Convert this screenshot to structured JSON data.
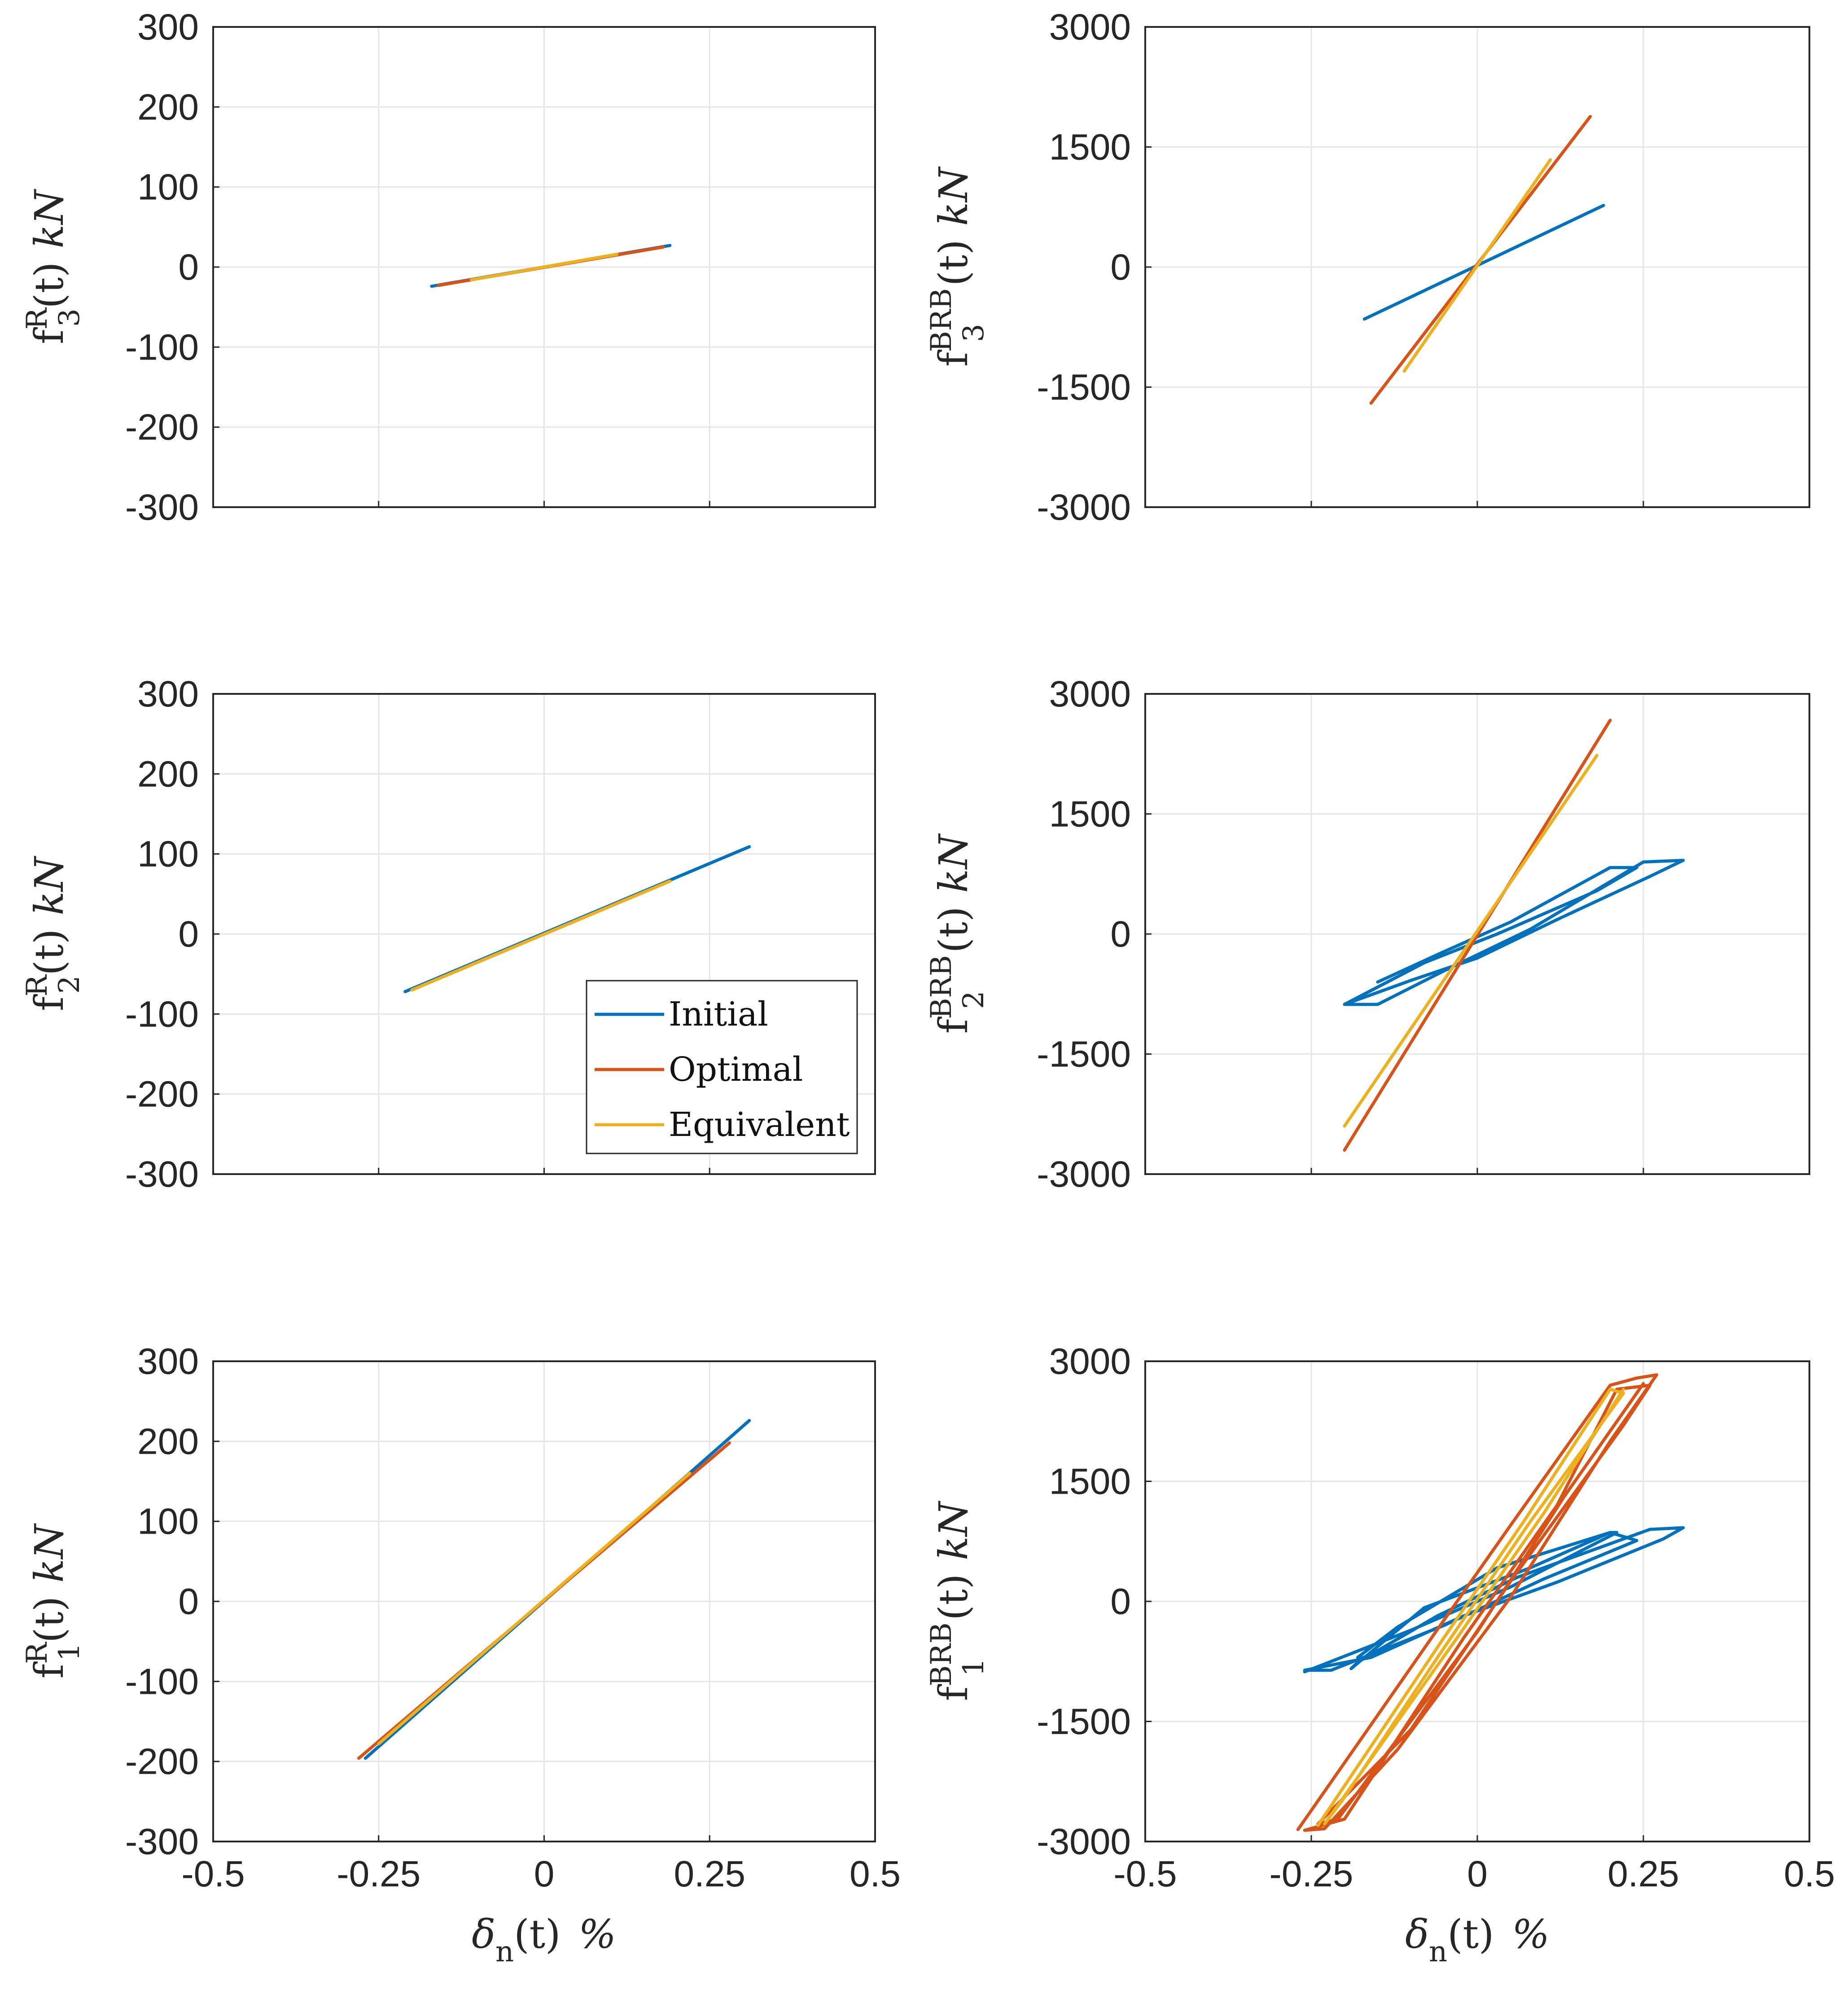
{
  "colors": {
    "Initial": "#0072BD",
    "Optimal": "#D95319",
    "Equivalent": "#EDB120",
    "grid": "#e6e6e6",
    "axis": "#262626"
  },
  "legend": [
    "Initial",
    "Optimal",
    "Equivalent"
  ],
  "labels": {
    "x_main": "δ",
    "x_sub": "n",
    "x_rest": "(t)",
    "x_unit": "%",
    "yR_main": "f",
    "yR_sup": "R",
    "yBRB_sup": "BRB",
    "y_rest": "(t)",
    "y_unit": "kN"
  },
  "chart_data": [
    {
      "type": "line",
      "id": "fR3",
      "title": "",
      "story": "3",
      "ylabel": "f3R(t) kN",
      "xlabel": "",
      "xlim": [
        -0.5,
        0.5
      ],
      "ylim": [
        -300,
        300
      ],
      "xticks": [
        "-0.5",
        "-0.25",
        "0",
        "0.25",
        "0.5"
      ],
      "yticks": [
        "300",
        "200",
        "100",
        "0",
        "-100",
        "-200",
        "-300"
      ],
      "series": [
        {
          "name": "Initial",
          "x": [
            -0.17,
            0.19
          ],
          "y": [
            -24,
            27
          ]
        },
        {
          "name": "Optimal",
          "x": [
            -0.16,
            0.18
          ],
          "y": [
            -23,
            25
          ]
        },
        {
          "name": "Equivalent",
          "x": [
            -0.11,
            0.11
          ],
          "y": [
            -16,
            16
          ]
        }
      ]
    },
    {
      "type": "line",
      "id": "fBRB3",
      "title": "",
      "story": "3",
      "ylabel": "f3BRB(t) kN",
      "xlabel": "",
      "xlim": [
        -0.5,
        0.5
      ],
      "ylim": [
        -3000,
        3000
      ],
      "xticks": [
        "-0.5",
        "-0.25",
        "0",
        "0.25",
        "0.5"
      ],
      "yticks": [
        "3000",
        "1500",
        "0",
        "-1500",
        "-3000"
      ],
      "series": [
        {
          "name": "Initial",
          "x": [
            -0.17,
            0.19
          ],
          "y": [
            -650,
            770
          ]
        },
        {
          "name": "Optimal",
          "x": [
            -0.16,
            0.17
          ],
          "y": [
            -1700,
            1880
          ]
        },
        {
          "name": "Equivalent",
          "x": [
            -0.11,
            0.11
          ],
          "y": [
            -1300,
            1340
          ]
        }
      ]
    },
    {
      "type": "line",
      "id": "fR2",
      "title": "",
      "story": "2",
      "ylabel": "f2R(t) kN",
      "xlabel": "",
      "xlim": [
        -0.5,
        0.5
      ],
      "ylim": [
        -300,
        300
      ],
      "xticks": [
        "-0.5",
        "-0.25",
        "0",
        "0.25",
        "0.5"
      ],
      "yticks": [
        "300",
        "200",
        "100",
        "0",
        "-100",
        "-200",
        "-300"
      ],
      "series": [
        {
          "name": "Initial",
          "x": [
            -0.21,
            0.31
          ],
          "y": [
            -72,
            109
          ]
        },
        {
          "name": "Optimal",
          "x": [
            -0.2,
            0.19
          ],
          "y": [
            -70,
            66
          ]
        },
        {
          "name": "Equivalent",
          "x": [
            -0.2,
            0.19
          ],
          "y": [
            -70,
            66
          ]
        }
      ]
    },
    {
      "type": "line",
      "id": "fBRB2",
      "title": "",
      "story": "2",
      "ylabel": "f2BRB(t) kN",
      "xlabel": "",
      "xlim": [
        -0.5,
        0.5
      ],
      "ylim": [
        -3000,
        3000
      ],
      "xticks": [
        "-0.5",
        "-0.25",
        "0",
        "0.25",
        "0.5"
      ],
      "yticks": [
        "3000",
        "1500",
        "0",
        "-1500",
        "-3000"
      ],
      "series": [
        {
          "name": "Initial",
          "x": [
            -0.15,
            -0.05,
            0.05,
            0.2,
            0.24,
            0.18,
            0.03,
            -0.08,
            -0.2,
            -0.15,
            -0.05,
            0.08,
            0.25,
            0.31,
            0.26,
            0.12,
            0.0,
            -0.1,
            -0.2
          ],
          "y": [
            -600,
            -220,
            150,
            830,
            830,
            540,
            0,
            -360,
            -880,
            -880,
            -460,
            60,
            900,
            920,
            720,
            180,
            -300,
            -580,
            -880
          ]
        },
        {
          "name": "Optimal",
          "x": [
            -0.2,
            0.2
          ],
          "y": [
            -2700,
            2670
          ]
        },
        {
          "name": "Equivalent",
          "x": [
            -0.2,
            0.18
          ],
          "y": [
            -2400,
            2230
          ]
        }
      ]
    },
    {
      "type": "line",
      "id": "fR1",
      "title": "",
      "story": "1",
      "ylabel": "f1R(t) kN",
      "xlabel": "δn(t) %",
      "xlim": [
        -0.5,
        0.5
      ],
      "ylim": [
        -300,
        300
      ],
      "xticks": [
        "-0.5",
        "-0.25",
        "0",
        "0.25",
        "0.5"
      ],
      "yticks": [
        "300",
        "200",
        "100",
        "0",
        "-100",
        "-200",
        "-300"
      ],
      "series": [
        {
          "name": "Initial",
          "x": [
            -0.27,
            0.31
          ],
          "y": [
            -196,
            226
          ]
        },
        {
          "name": "Optimal",
          "x": [
            -0.28,
            0.28
          ],
          "y": [
            -196,
            198
          ]
        },
        {
          "name": "Equivalent",
          "x": [
            -0.25,
            0.22
          ],
          "y": [
            -178,
            160
          ]
        }
      ]
    },
    {
      "type": "line",
      "id": "fBRB1",
      "title": "",
      "story": "1",
      "ylabel": "f1BRB(t) kN",
      "xlabel": "δn(t) %",
      "xlim": [
        -0.5,
        0.5
      ],
      "ylim": [
        -3000,
        3000
      ],
      "xticks": [
        "-0.5",
        "-0.25",
        "0",
        "0.25",
        "0.5"
      ],
      "yticks": [
        "3000",
        "1500",
        "0",
        "-1500",
        "-3000"
      ],
      "series": [
        {
          "name": "Initial",
          "x": [
            -0.26,
            -0.1,
            0.05,
            0.21,
            0.2,
            0.08,
            -0.08,
            -0.19,
            -0.18,
            -0.06,
            0.06,
            0.26,
            0.31,
            0.28,
            0.12,
            -0.02,
            -0.16,
            -0.26,
            -0.22,
            -0.05,
            0.1,
            0.24,
            0.2,
            0.03,
            -0.12,
            -0.18
          ],
          "y": [
            -880,
            -360,
            180,
            860,
            860,
            420,
            -80,
            -840,
            -760,
            -180,
            300,
            900,
            920,
            780,
            240,
            -180,
            -700,
            -860,
            -860,
            -300,
            280,
            760,
            860,
            420,
            -320,
            -700
          ]
        },
        {
          "name": "Optimal",
          "x": [
            -0.27,
            -0.06,
            0.05,
            0.2,
            0.24,
            0.27,
            0.2,
            0.05,
            -0.12,
            -0.23,
            -0.26,
            -0.2,
            -0.02,
            0.12,
            0.21,
            0.26,
            0.22,
            0.05,
            -0.1,
            -0.24,
            -0.21,
            0.0,
            0.13,
            0.25
          ],
          "y": [
            -2850,
            -350,
            950,
            2700,
            2790,
            2830,
            2000,
            50,
            -1850,
            -2840,
            -2860,
            -2720,
            -450,
            1200,
            2650,
            2700,
            2200,
            250,
            -1600,
            -2780,
            -2720,
            -380,
            1300,
            2720
          ]
        },
        {
          "name": "Equivalent",
          "x": [
            -0.24,
            -0.05,
            0.07,
            0.2,
            0.22,
            0.08,
            -0.06,
            -0.2,
            -0.23,
            -0.03,
            0.1,
            0.22
          ],
          "y": [
            -2800,
            -450,
            1000,
            2650,
            2600,
            1000,
            -700,
            -2450,
            -2780,
            -450,
            1100,
            2650
          ]
        }
      ]
    }
  ]
}
